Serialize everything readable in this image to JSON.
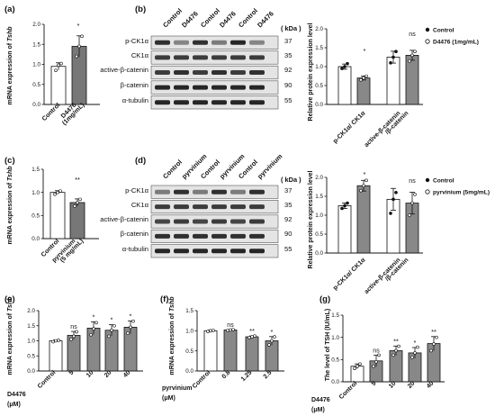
{
  "panels": {
    "a": {
      "label": "(a)",
      "ylabel_pre": "mRNA expression of ",
      "ylabel_gene": "Tshb",
      "yticks": [
        "0.0",
        "0.5",
        "1.0",
        "1.5",
        "2.0"
      ],
      "cat1": "Control",
      "cat2a": "D4476",
      "cat2b": "(1mg/mL)",
      "sig": "*"
    },
    "b": {
      "label": "(b)",
      "lanes": [
        "Control",
        "D4476",
        "Control",
        "D4476",
        "Control",
        "D4476"
      ],
      "kda": "( kDa )",
      "blots": [
        {
          "name": "p-CK1α",
          "kda": "37"
        },
        {
          "name": "CK1α",
          "kda": "35"
        },
        {
          "name": "active-β-catenin",
          "kda": "92"
        },
        {
          "name": "β-catenin",
          "kda": "90"
        },
        {
          "name": "α-tubulin",
          "kda": "55"
        }
      ],
      "ylabel": "Relative protein expression level",
      "yticks": [
        "0.0",
        "0.5",
        "1.0",
        "1.5",
        "2.0"
      ],
      "xcat1": "p-CK1α/ CK1α",
      "xcat2a": "active-β-catenin",
      "xcat2b": "/β-catenin",
      "sig1": "*",
      "sig2": "ns",
      "legend1": "Control",
      "legend2": "D4476 (1mg/mL)"
    },
    "c": {
      "label": "(c)",
      "ylabel_pre": "mRNA expression of ",
      "ylabel_gene": "Tshb",
      "yticks": [
        "0.0",
        "0.5",
        "1.0",
        "1.5"
      ],
      "cat1": "Control",
      "cat2a": "pyrvinium",
      "cat2b": "(5 mg/mL)",
      "sig": "**"
    },
    "d": {
      "label": "(d)",
      "lanes": [
        "Control",
        "pyrvinium",
        "Control",
        "pyrvinium",
        "Control",
        "pyrvinium"
      ],
      "kda": "( kDa )",
      "blots": [
        {
          "name": "p-CK1α",
          "kda": "37"
        },
        {
          "name": "CK1α",
          "kda": "35"
        },
        {
          "name": "active-β-catenin",
          "kda": "92"
        },
        {
          "name": "β-catenin",
          "kda": "90"
        },
        {
          "name": "α-tubulin",
          "kda": "55"
        }
      ],
      "ylabel": "Relative protein expression level",
      "yticks": [
        "0.0",
        "0.5",
        "1.0",
        "1.5",
        "2.0"
      ],
      "xcat1": "p-CK1α/ CK1α",
      "xcat2a": "active-β-catenin",
      "xcat2b": "/β-catenin",
      "sig1": "*",
      "sig2": "ns",
      "legend1": "Control",
      "legend2": "pyrvinium (5mg/mL)"
    },
    "e": {
      "label": "(e)",
      "ylabel_pre": "mRNA expression of ",
      "ylabel_gene": "Tshb",
      "yticks": [
        "0.0",
        "0.5",
        "1.0",
        "1.5",
        "2.0"
      ],
      "cats": [
        "Control",
        "5",
        "10",
        "20",
        "40"
      ],
      "sigs": [
        "",
        "ns",
        "*",
        "*",
        "*"
      ],
      "treat": "D4476",
      "unit": "(μM)"
    },
    "f": {
      "label": "(f)",
      "ylabel_pre": "mRNA expression of ",
      "ylabel_gene": "Tshb",
      "yticks": [
        "0.0",
        "0.5",
        "1.0",
        "1.5"
      ],
      "cats": [
        "Control",
        "0.8",
        "1.25",
        "2.5"
      ],
      "sigs": [
        "",
        "ns",
        "**",
        "*"
      ],
      "treat": "pyrvinium",
      "unit": "(μM)"
    },
    "g": {
      "label": "(g)",
      "ylabel": "The level of TSH (IU/mL)",
      "yticks": [
        "0.0",
        "0.5",
        "1.0",
        "1.5"
      ],
      "cats": [
        "Control",
        "5",
        "10",
        "20",
        "40"
      ],
      "sigs": [
        "",
        "ns",
        "**",
        "*",
        "**"
      ],
      "treat": "D4476",
      "unit": "(μM)"
    }
  },
  "chart_data": [
    {
      "panel": "a",
      "type": "bar",
      "categories": [
        "Control",
        "D4476 (1mg/mL)"
      ],
      "values": [
        0.95,
        1.45
      ],
      "ylim": [
        0,
        2.0
      ]
    },
    {
      "panel": "b",
      "type": "bar",
      "categories": [
        "p-CK1α/ CK1α",
        "active-β-catenin/β-catenin"
      ],
      "series": [
        {
          "name": "Control",
          "values": [
            1.0,
            1.25
          ]
        },
        {
          "name": "D4476 (1mg/mL)",
          "values": [
            0.7,
            1.3
          ]
        }
      ],
      "ylim": [
        0,
        2.0
      ]
    },
    {
      "panel": "c",
      "type": "bar",
      "categories": [
        "Control",
        "pyrvinium (5 mg/mL)"
      ],
      "values": [
        1.0,
        0.78
      ],
      "ylim": [
        0,
        1.5
      ]
    },
    {
      "panel": "d",
      "type": "bar",
      "categories": [
        "p-CK1α/ CK1α",
        "active-β-catenin/β-catenin"
      ],
      "series": [
        {
          "name": "Control",
          "values": [
            1.25,
            1.42
          ]
        },
        {
          "name": "pyrvinium (5mg/mL)",
          "values": [
            1.78,
            1.32
          ]
        }
      ],
      "ylim": [
        0,
        2.0
      ]
    },
    {
      "panel": "e",
      "type": "bar",
      "categories": [
        "Control",
        "5",
        "10",
        "20",
        "40"
      ],
      "values": [
        1.0,
        1.18,
        1.42,
        1.35,
        1.45
      ],
      "ylim": [
        0,
        2.0
      ]
    },
    {
      "panel": "f",
      "type": "bar",
      "categories": [
        "Control",
        "0.8",
        "1.25",
        "2.5"
      ],
      "values": [
        1.0,
        1.02,
        0.85,
        0.75
      ],
      "ylim": [
        0,
        1.5
      ]
    },
    {
      "panel": "g",
      "type": "bar",
      "categories": [
        "Control",
        "5",
        "10",
        "20",
        "40"
      ],
      "values": [
        0.35,
        0.47,
        0.7,
        0.65,
        0.86
      ],
      "ylim": [
        0,
        1.5
      ]
    }
  ]
}
